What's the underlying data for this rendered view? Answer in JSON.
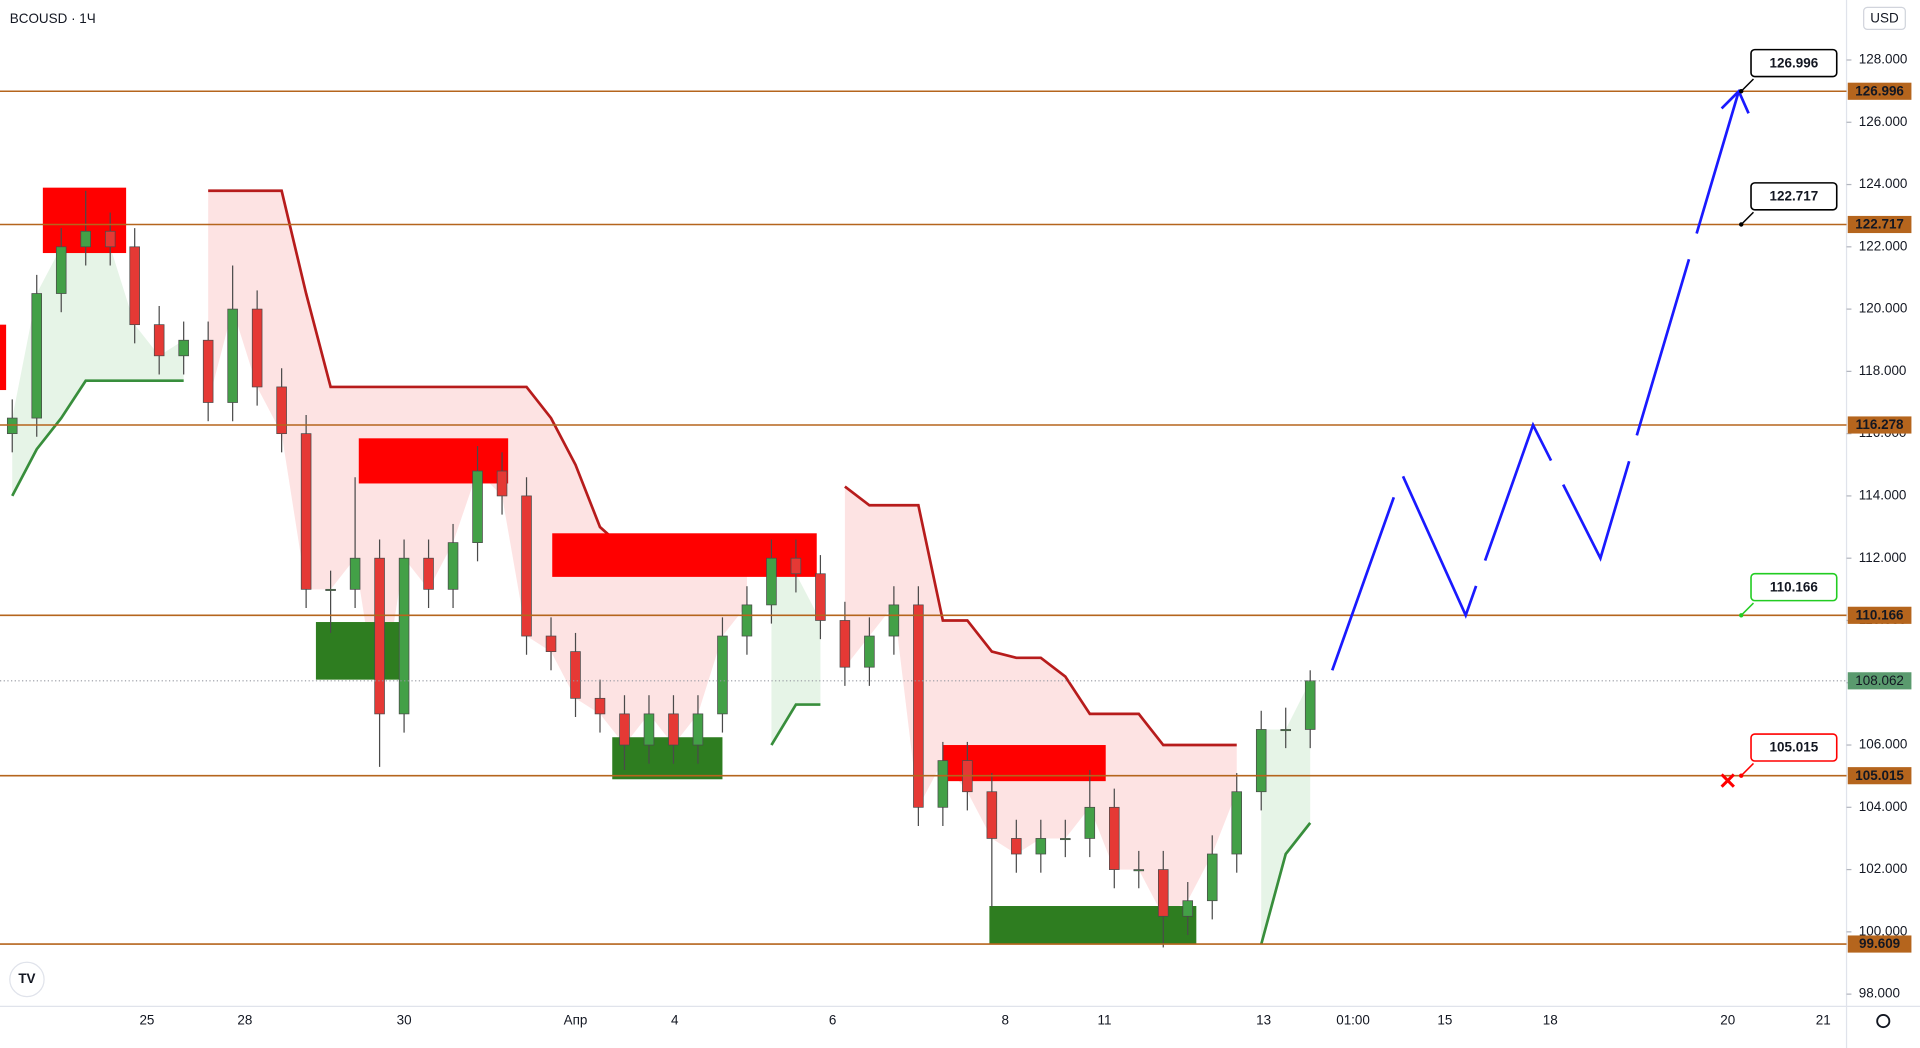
{
  "chart_data": {
    "type": "candlestick",
    "title": "BCOUSD · 1Ч",
    "currency_button": "USD",
    "ylim": [
      97.6,
      129.5
    ],
    "yticks": [
      {
        "value": 98,
        "label": "98.000"
      },
      {
        "value": 100,
        "label": "100.000"
      },
      {
        "value": 102,
        "label": "102.000"
      },
      {
        "value": 104,
        "label": "104.000"
      },
      {
        "value": 106,
        "label": "106.000"
      },
      {
        "value": 108,
        "label": "108.000"
      },
      {
        "value": 110,
        "label": "110.000"
      },
      {
        "value": 112,
        "label": "112.000"
      },
      {
        "value": 114,
        "label": "114.000"
      },
      {
        "value": 116,
        "label": "116.000"
      },
      {
        "value": 118,
        "label": "118.000"
      },
      {
        "value": 120,
        "label": "120.000"
      },
      {
        "value": 122,
        "label": "122.000"
      },
      {
        "value": 124,
        "label": "124.000"
      },
      {
        "value": 126,
        "label": "126.000"
      },
      {
        "value": 128,
        "label": "128.000"
      }
    ],
    "xtick_labels": [
      "25",
      "28",
      "30",
      "Апр",
      "4",
      "6",
      "8",
      "11",
      "13",
      "01:00",
      "15",
      "18",
      "20",
      "21"
    ],
    "up_color": "#43a047",
    "down_color": "#e53935",
    "open": [
      116,
      116.5,
      120.5,
      122,
      122.5,
      122,
      119.5,
      118.5,
      119,
      117,
      120,
      117.5,
      116,
      111,
      111,
      112,
      107,
      112,
      111,
      112.5,
      114.8,
      114,
      109.5,
      109,
      107.5,
      107,
      106,
      107,
      106,
      107,
      109.5,
      110.5,
      112,
      111.5,
      110,
      108.5,
      109.5,
      110.5,
      104,
      105.5,
      104.5,
      103,
      102.5,
      103,
      103,
      104,
      102,
      102,
      100.5,
      101,
      102.5,
      104.5,
      106.5,
      106.5
    ],
    "high": [
      117.1,
      121.1,
      122.6,
      123.8,
      123.1,
      122.6,
      120.1,
      119.6,
      119.6,
      121.4,
      120.6,
      118.1,
      116.6,
      111.6,
      114.6,
      112.6,
      112.6,
      112.6,
      113.1,
      115.6,
      115.4,
      114.6,
      110.1,
      109.6,
      108.1,
      107.6,
      107.6,
      107.6,
      107.6,
      110.1,
      111.1,
      112.6,
      112.6,
      112.1,
      110.6,
      110.1,
      111.1,
      111.1,
      106.1,
      106.1,
      105.1,
      103.6,
      103.6,
      103.6,
      105.2,
      104.6,
      102.6,
      102.6,
      101.6,
      103.1,
      105.1,
      107.1,
      107.2,
      108.4
    ],
    "low": [
      115.4,
      115.9,
      119.9,
      121.4,
      121.4,
      118.9,
      117.9,
      117.9,
      116.4,
      116.4,
      116.9,
      115.4,
      110.4,
      109.6,
      110.4,
      105.3,
      106.4,
      110.4,
      110.4,
      111.9,
      113.4,
      108.9,
      108.4,
      106.9,
      106.4,
      105.2,
      105.4,
      105.4,
      105.4,
      106.4,
      108.9,
      109.9,
      110.9,
      109.4,
      107.9,
      107.9,
      108.9,
      103.4,
      103.4,
      103.9,
      100.8,
      101.9,
      101.9,
      102.4,
      102.4,
      101.4,
      101.4,
      99.5,
      99.9,
      100.4,
      101.9,
      103.9,
      105.9,
      105.9
    ],
    "close": [
      116.5,
      120.5,
      122,
      122.5,
      122,
      119.5,
      118.5,
      119,
      117,
      120,
      117.5,
      116,
      111,
      111,
      112,
      107,
      112,
      111,
      112.5,
      114.8,
      114,
      109.5,
      109,
      107.5,
      107,
      106,
      107,
      106,
      107,
      109.5,
      110.5,
      112,
      111.5,
      110,
      108.5,
      109.5,
      110.5,
      104,
      105.5,
      104.5,
      103,
      102.5,
      103,
      103,
      104,
      102,
      102,
      100.5,
      101,
      102.5,
      104.5,
      106.5,
      106.5,
      108.062
    ],
    "trails": [
      {
        "color": "#b71c1c",
        "fill": "#fde3e3",
        "values": [
          null,
          null,
          null,
          null,
          null,
          null,
          null,
          null,
          123.8,
          123.8,
          123.8,
          123.8,
          120.5,
          117.5,
          117.5,
          117.5,
          117.5,
          117.5,
          117.5,
          117.5,
          117.5,
          117.5,
          116.5,
          115,
          113,
          112.3,
          112.3,
          112.3,
          111.5,
          111.5,
          111.5,
          null,
          null,
          null,
          114.3,
          113.7,
          113.7,
          113.7,
          110,
          110,
          109,
          108.8,
          108.8,
          108.2,
          107,
          107,
          107,
          106,
          106,
          106,
          106,
          null,
          null,
          null
        ]
      },
      {
        "color": "#388e3c",
        "fill": "#e6f4e7",
        "values": [
          114,
          115.5,
          116.5,
          117.7,
          117.7,
          117.7,
          117.7,
          117.7,
          null,
          null,
          null,
          null,
          null,
          null,
          null,
          null,
          null,
          null,
          null,
          null,
          null,
          null,
          null,
          null,
          null,
          null,
          null,
          null,
          null,
          null,
          null,
          106,
          107.3,
          107.3,
          null,
          null,
          null,
          null,
          null,
          null,
          null,
          null,
          null,
          null,
          null,
          null,
          null,
          null,
          null,
          null,
          null,
          99.6,
          102.5,
          103.5
        ]
      }
    ],
    "zones": [
      {
        "top": 119.5,
        "bottom": 117.4,
        "color": "#ff0000"
      },
      {
        "top": 123.9,
        "bottom": 121.8,
        "color": "#ff0000"
      },
      {
        "top": 115.85,
        "bottom": 114.4,
        "color": "#ff0000"
      },
      {
        "top": 112.8,
        "bottom": 111.4,
        "color": "#ff0000"
      },
      {
        "top": 106.0,
        "bottom": 104.84,
        "color": "#ff0000"
      },
      {
        "top": 109.95,
        "bottom": 108.1,
        "color": "#2e7d20"
      },
      {
        "top": 106.25,
        "bottom": 104.9,
        "color": "#2e7d20"
      },
      {
        "top": 100.83,
        "bottom": 99.6,
        "color": "#2e7d20"
      }
    ],
    "levels": {
      "color": "#b5651d",
      "values": [
        126.996,
        122.717,
        116.278,
        110.166,
        105.015,
        99.609
      ]
    },
    "last_price": {
      "value": 108.062,
      "color": "#5a9a6e"
    },
    "projection": {
      "color": "#1a1aff",
      "values": [
        108.4,
        114.7,
        110.166,
        116.278,
        112.0,
        126.996
      ]
    },
    "callouts": [
      {
        "value": 126.996,
        "color": "#000000"
      },
      {
        "value": 122.717,
        "color": "#000000"
      },
      {
        "value": 110.166,
        "color": "#22cc22"
      },
      {
        "value": 105.015,
        "color": "#ff0000"
      }
    ],
    "stop_marker": {
      "value": 105.015,
      "color": "#ff0000"
    }
  }
}
